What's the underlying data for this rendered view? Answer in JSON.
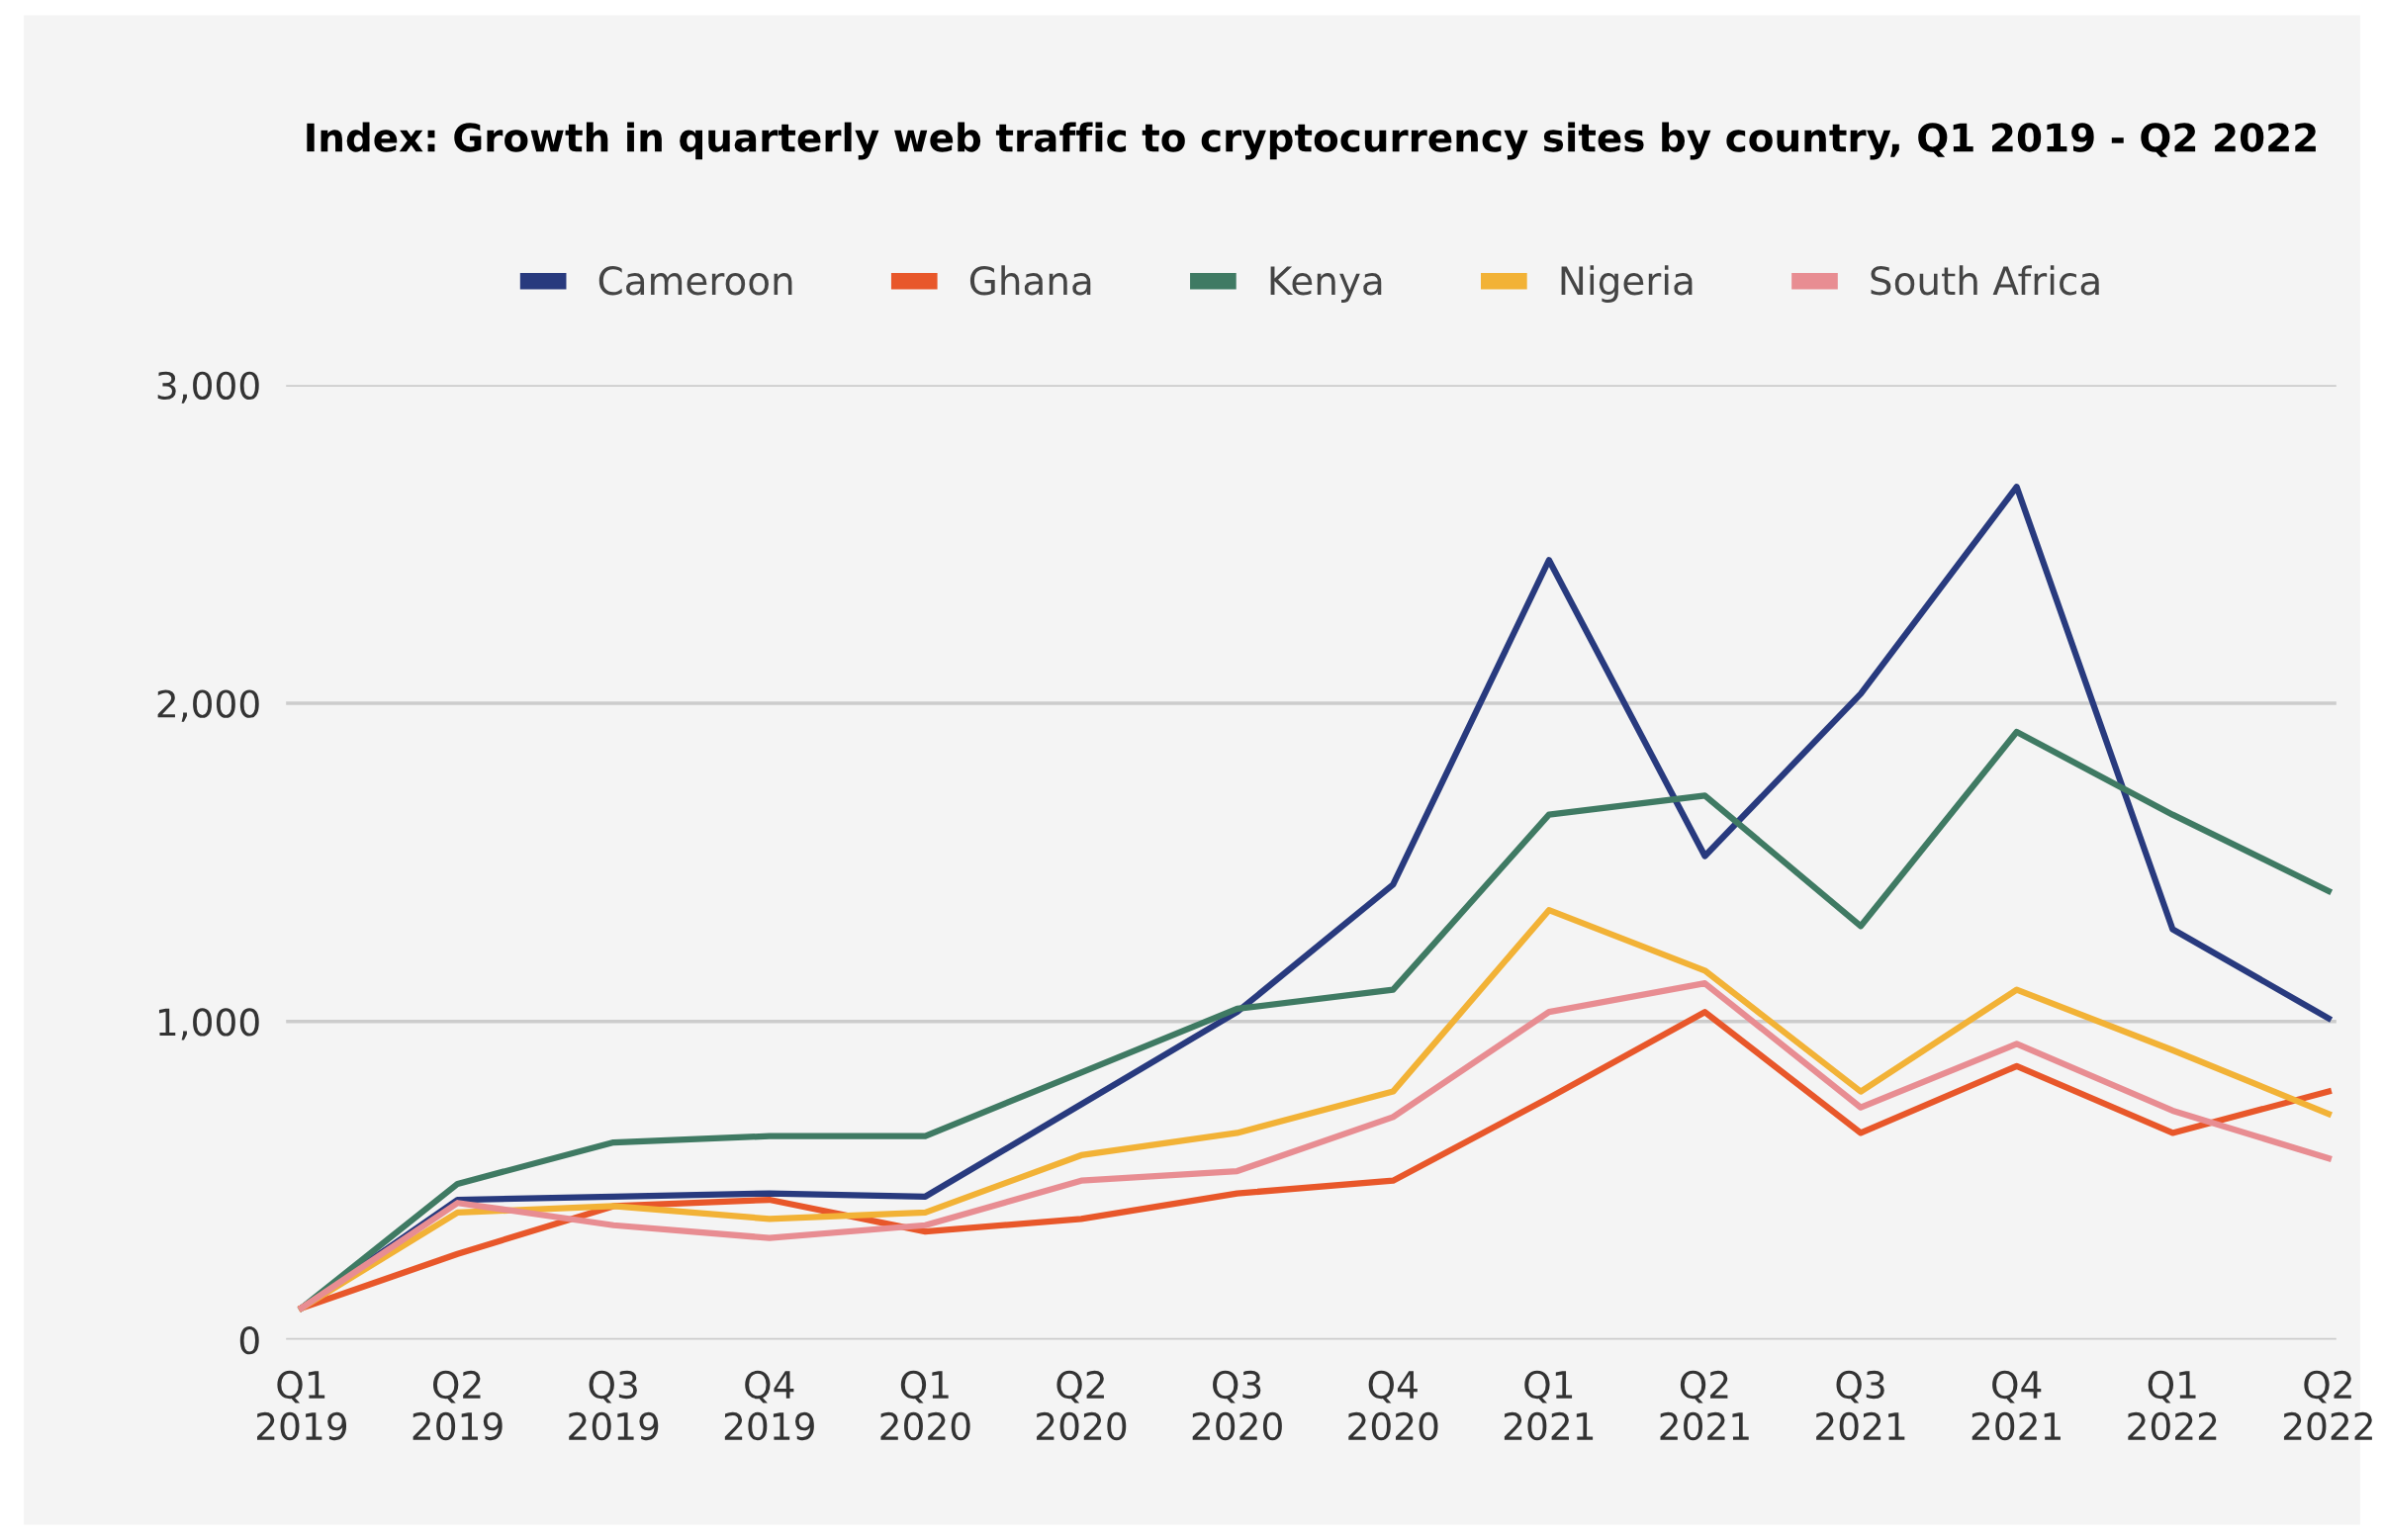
{
  "chart_data": {
    "type": "line",
    "title": "Index: Growth in quarterly web traffic to cryptocurrency sites by country, Q1 2019 - Q2 2022",
    "categories": [
      "Q1\n2019",
      "Q2\n2019",
      "Q3\n2019",
      "Q4\n2019",
      "Q1\n2020",
      "Q2\n2020",
      "Q3\n2020",
      "Q4\n2020",
      "Q1\n2021",
      "Q2\n2021",
      "Q3\n2021",
      "Q4\n2021",
      "Q1\n2022",
      "Q2\n2022"
    ],
    "series": [
      {
        "name": "Cameroon",
        "color": "#283a7e",
        "values": [
          100,
          440,
          450,
          460,
          450,
          740,
          1030,
          1430,
          2450,
          1520,
          2030,
          2680,
          1290,
          1010
        ]
      },
      {
        "name": "Ghana",
        "color": "#e8572a",
        "values": [
          100,
          270,
          420,
          440,
          340,
          380,
          460,
          500,
          760,
          1030,
          650,
          860,
          650,
          780
        ]
      },
      {
        "name": "Kenya",
        "color": "#3f7a63",
        "values": [
          100,
          490,
          620,
          640,
          640,
          840,
          1040,
          1100,
          1650,
          1710,
          1300,
          1910,
          1650,
          1410
        ]
      },
      {
        "name": "Nigeria",
        "color": "#f2b236",
        "values": [
          100,
          400,
          420,
          380,
          400,
          580,
          650,
          780,
          1350,
          1160,
          780,
          1100,
          910,
          710
        ]
      },
      {
        "name": "South Africa",
        "color": "#e88d92",
        "values": [
          100,
          430,
          360,
          320,
          360,
          500,
          530,
          700,
          1030,
          1120,
          730,
          930,
          720,
          570
        ]
      }
    ],
    "ylim": [
      0,
      3000
    ],
    "yticks": [
      0,
      {
        "value": 1000,
        "label": "1,000"
      },
      {
        "value": 2000,
        "label": "2,000"
      },
      {
        "value": 3000,
        "label": "3,000"
      }
    ],
    "grid": "y",
    "legend": "top",
    "marker": "none",
    "line_style": "solid"
  }
}
